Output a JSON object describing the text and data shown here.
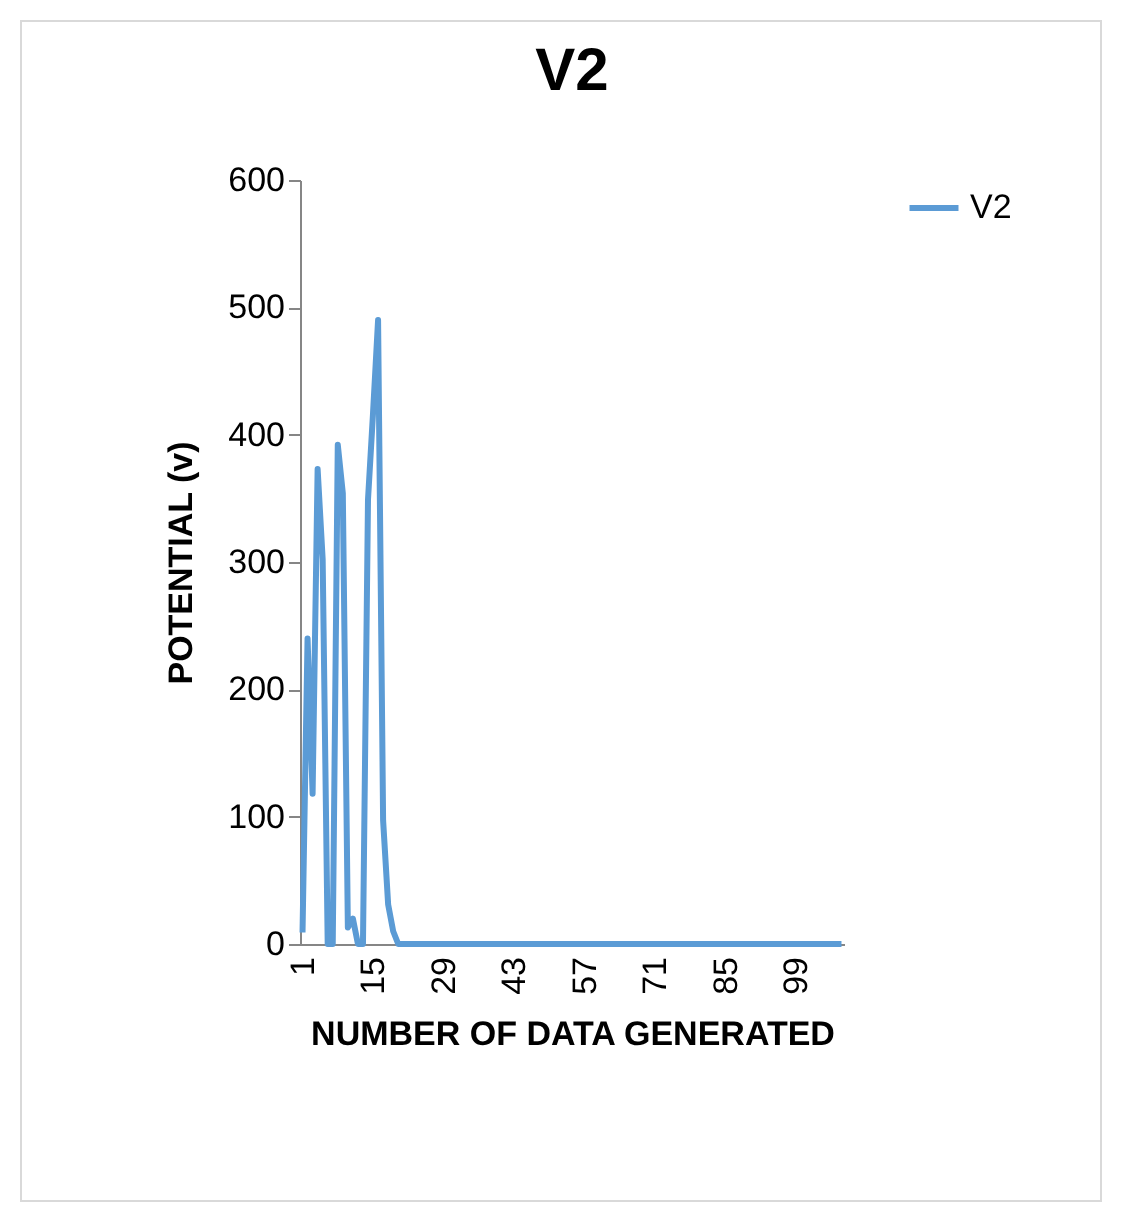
{
  "chart_data": {
    "type": "line",
    "title": "V2",
    "xlabel": "NUMBER OF DATA GENERATED",
    "ylabel": "POTENTIAL (v)",
    "categories": [
      "1",
      null,
      null,
      null,
      null,
      null,
      null,
      null,
      null,
      null,
      null,
      null,
      null,
      null,
      "15",
      null,
      null,
      null,
      null,
      null,
      null,
      null,
      null,
      null,
      null,
      null,
      null,
      null,
      "29",
      null,
      null,
      null,
      null,
      null,
      null,
      null,
      null,
      null,
      null,
      null,
      null,
      null,
      "43",
      null,
      null,
      null,
      null,
      null,
      null,
      null,
      null,
      null,
      null,
      null,
      null,
      null,
      "57",
      null,
      null,
      null,
      null,
      null,
      null,
      null,
      null,
      null,
      null,
      null,
      null,
      null,
      "71",
      null,
      null,
      null,
      null,
      null,
      null,
      null,
      null,
      null,
      null,
      null,
      null,
      null,
      "85",
      null,
      null,
      null,
      null,
      null,
      null,
      null,
      null,
      null,
      null,
      null,
      null,
      null,
      "99",
      null,
      null,
      null,
      null,
      null,
      null,
      null,
      null,
      null
    ],
    "series": [
      {
        "name": "V2",
        "color": "#5b9bd5",
        "values": [
          9,
          240,
          118,
          373,
          302,
          0,
          0,
          392,
          354,
          13,
          20,
          0,
          0,
          349,
          417,
          490,
          97,
          31,
          10,
          0,
          0,
          0,
          0,
          0,
          0,
          0,
          0,
          0,
          0,
          0,
          0,
          0,
          0,
          0,
          0,
          0,
          0,
          0,
          0,
          0,
          0,
          0,
          0,
          0,
          0,
          0,
          0,
          0,
          0,
          0,
          0,
          0,
          0,
          0,
          0,
          0,
          0,
          0,
          0,
          0,
          0,
          0,
          0,
          0,
          0,
          0,
          0,
          0,
          0,
          0,
          0,
          0,
          0,
          0,
          0,
          0,
          0,
          0,
          0,
          0,
          0,
          0,
          0,
          0,
          0,
          0,
          0,
          0,
          0,
          0,
          0,
          0,
          0,
          0,
          0,
          0,
          0,
          0,
          0,
          0,
          0,
          0,
          0,
          0,
          0,
          0,
          0,
          0
        ]
      }
    ],
    "ylim": [
      0,
      600
    ],
    "yticks": [
      0,
      100,
      200,
      300,
      400,
      500,
      600
    ],
    "grid": false,
    "legend": "right",
    "marker": "none",
    "line_style": "solid"
  }
}
